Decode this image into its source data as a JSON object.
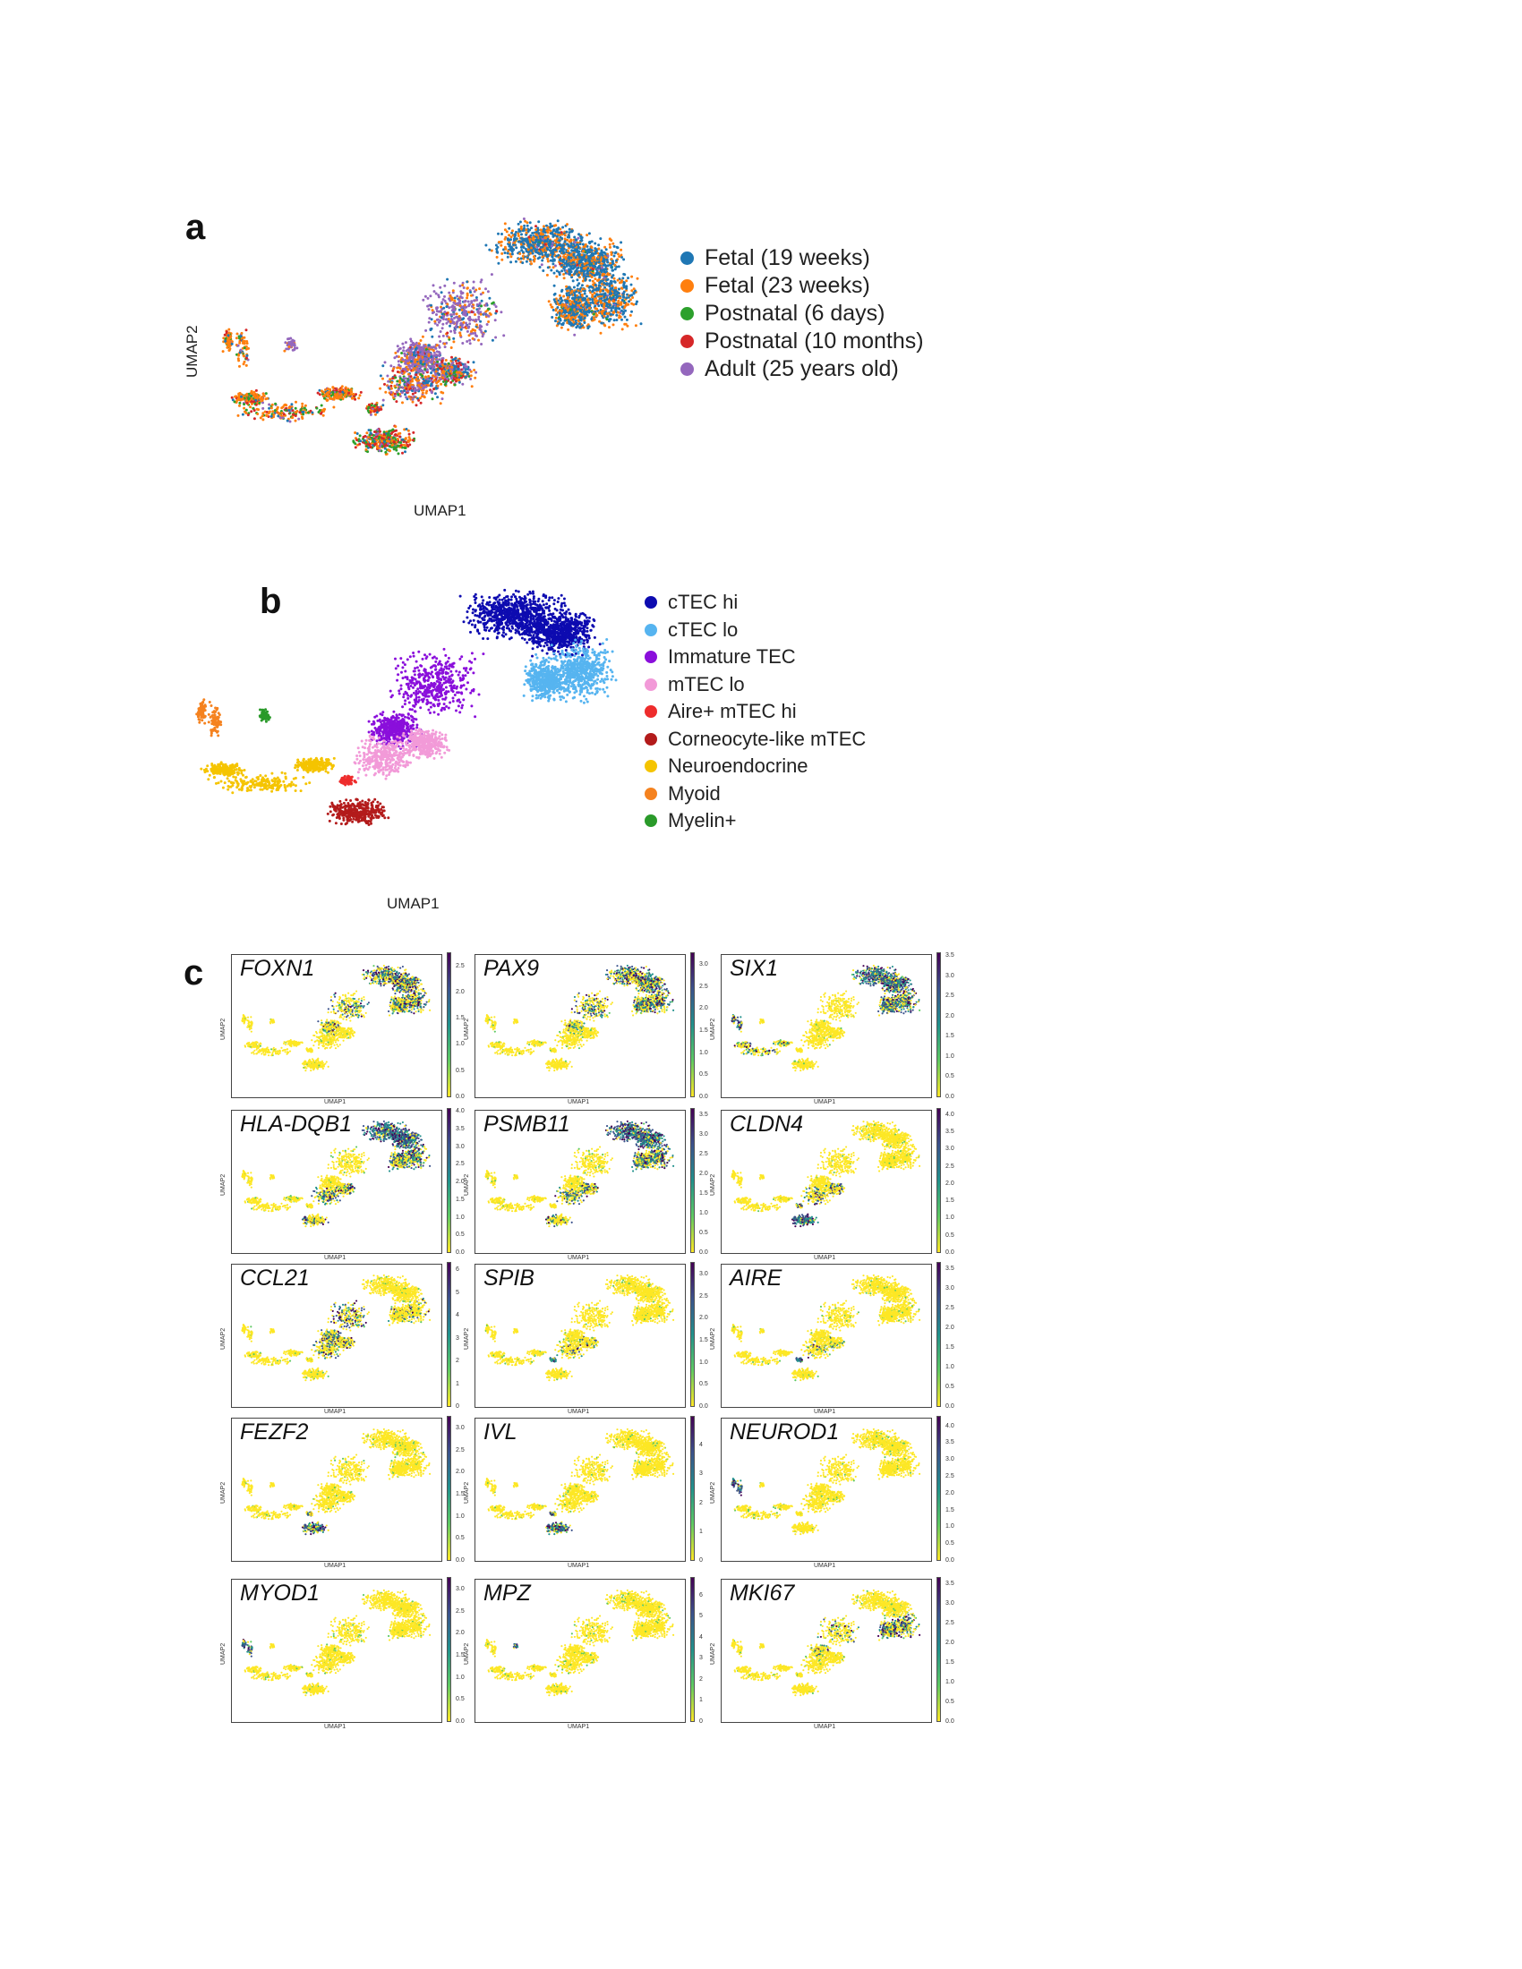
{
  "panel_a": {
    "letter": "a",
    "xlabel": "UMAP1",
    "ylabel": "UMAP2",
    "legend": [
      {
        "label": "Fetal (19 weeks)",
        "color": "#1f77b4"
      },
      {
        "label": "Fetal (23 weeks)",
        "color": "#ff7f0e"
      },
      {
        "label": "Postnatal (6 days)",
        "color": "#2ca02c"
      },
      {
        "label": "Postnatal (10 months)",
        "color": "#d62728"
      },
      {
        "label": "Adult (25 years old)",
        "color": "#9467bd"
      }
    ]
  },
  "panel_b": {
    "letter": "b",
    "xlabel": "UMAP1",
    "legend": [
      {
        "label": "cTEC hi",
        "color": "#0d0bb0"
      },
      {
        "label": "cTEC lo",
        "color": "#56b4f0"
      },
      {
        "label": "Immature TEC",
        "color": "#8a0fdb"
      },
      {
        "label": "mTEC lo",
        "color": "#f29ad8"
      },
      {
        "label": "Aire+ mTEC hi",
        "color": "#ee2c2c"
      },
      {
        "label": "Corneocyte-like mTEC",
        "color": "#b31b1b"
      },
      {
        "label": "Neuroendocrine",
        "color": "#f5c400"
      },
      {
        "label": "Myoid",
        "color": "#f5821f"
      },
      {
        "label": "Myelin+",
        "color": "#2a9a2a"
      }
    ]
  },
  "panel_c": {
    "letter": "c",
    "xlabel": "UMAP1",
    "ylabel": "UMAP2",
    "colormap": [
      "#440154",
      "#3b528b",
      "#21918c",
      "#5ec962",
      "#fde725"
    ],
    "genes": [
      {
        "name": "FOXN1",
        "ticks": [
          "2.5",
          "2.0",
          "1.5",
          "1.0",
          "0.5",
          "0.0"
        ],
        "vmax": 2.7,
        "region": "ctec"
      },
      {
        "name": "PAX9",
        "ticks": [
          "3.0",
          "2.5",
          "2.0",
          "1.5",
          "1.0",
          "0.5",
          "0.0"
        ],
        "vmax": 3.2,
        "region": "ctec"
      },
      {
        "name": "SIX1",
        "ticks": [
          "3.5",
          "3.0",
          "2.5",
          "2.0",
          "1.5",
          "1.0",
          "0.5",
          "0.0"
        ],
        "vmax": 3.5,
        "region": "ctec_myoid"
      },
      {
        "name": "HLA-DQB1",
        "ticks": [
          "4.0",
          "3.5",
          "3.0",
          "2.5",
          "2.0",
          "1.5",
          "1.0",
          "0.5",
          "0.0"
        ],
        "vmax": 4.0,
        "region": "ctec_hi"
      },
      {
        "name": "PSMB11",
        "ticks": [
          "3.5",
          "3.0",
          "2.5",
          "2.0",
          "1.5",
          "1.0",
          "0.5",
          "0.0"
        ],
        "vmax": 3.6,
        "region": "ctec_hi"
      },
      {
        "name": "CLDN4",
        "ticks": [
          "4.0",
          "3.5",
          "3.0",
          "2.5",
          "2.0",
          "1.5",
          "1.0",
          "0.5",
          "0.0"
        ],
        "vmax": 4.1,
        "region": "mtec"
      },
      {
        "name": "CCL21",
        "ticks": [
          "6",
          "5",
          "4",
          "3",
          "2",
          "1",
          "0"
        ],
        "vmax": 6.2,
        "region": "immature"
      },
      {
        "name": "SPIB",
        "ticks": [
          "3.0",
          "2.5",
          "2.0",
          "1.5",
          "1.0",
          "0.5",
          "0.0"
        ],
        "vmax": 3.2,
        "region": "aire"
      },
      {
        "name": "AIRE",
        "ticks": [
          "3.5",
          "3.0",
          "2.5",
          "2.0",
          "1.5",
          "1.0",
          "0.5",
          "0.0"
        ],
        "vmax": 3.6,
        "region": "aire"
      },
      {
        "name": "FEZF2",
        "ticks": [
          "3.0",
          "2.5",
          "2.0",
          "1.5",
          "1.0",
          "0.5",
          "0.0"
        ],
        "vmax": 3.2,
        "region": "corneo"
      },
      {
        "name": "IVL",
        "ticks": [
          "4",
          "3",
          "2",
          "1",
          "0"
        ],
        "vmax": 4.9,
        "region": "corneo"
      },
      {
        "name": "NEUROD1",
        "ticks": [
          "4.0",
          "3.5",
          "3.0",
          "2.5",
          "2.0",
          "1.5",
          "1.0",
          "0.5",
          "0.0"
        ],
        "vmax": 4.2,
        "region": "myoid"
      },
      {
        "name": "MYOD1",
        "ticks": [
          "3.0",
          "2.5",
          "2.0",
          "1.5",
          "1.0",
          "0.5",
          "0.0"
        ],
        "vmax": 3.2,
        "region": "myoid"
      },
      {
        "name": "MPZ",
        "ticks": [
          "6",
          "5",
          "4",
          "3",
          "2",
          "1",
          "0"
        ],
        "vmax": 6.7,
        "region": "myelin"
      },
      {
        "name": "MKI67",
        "ticks": [
          "3.5",
          "3.0",
          "2.5",
          "2.0",
          "1.5",
          "1.0",
          "0.5",
          "0.0"
        ],
        "vmax": 3.6,
        "region": "prolif"
      }
    ]
  }
}
